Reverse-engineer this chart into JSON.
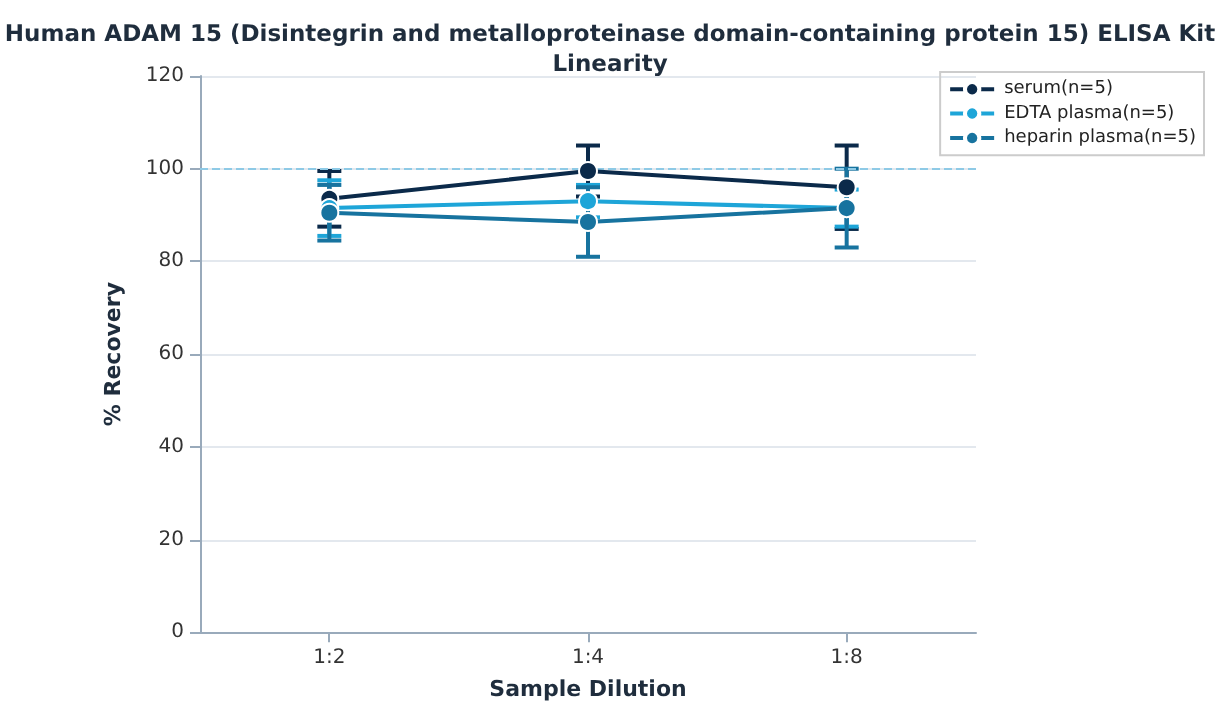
{
  "chart_data": {
    "type": "line",
    "title": "Human ADAM 15 (Disintegrin and metalloproteinase domain-containing protein 15) ELISA Kit",
    "subtitle": "Linearity",
    "xlabel": "Sample Dilution",
    "ylabel": "% Recovery",
    "categories": [
      "1:2",
      "1:4",
      "1:8"
    ],
    "series": [
      {
        "name": "serum(n=5)",
        "color": "#0b2a4a",
        "values": [
          93.5,
          99.5,
          96
        ],
        "errors": [
          6,
          5.5,
          9
        ]
      },
      {
        "name": "EDTA plasma(n=5)",
        "color": "#1ea5d8",
        "values": [
          91.5,
          93,
          91.5
        ],
        "errors": [
          6,
          3.5,
          4
        ]
      },
      {
        "name": "heparin plasma(n=5)",
        "color": "#17739f",
        "values": [
          90.5,
          88.5,
          91.5
        ],
        "errors": [
          6,
          7.5,
          8.5
        ]
      }
    ],
    "ylim": [
      0,
      120
    ],
    "yticks": [
      0,
      20,
      40,
      60,
      80,
      100,
      120
    ],
    "grid": "y",
    "legend": "top right",
    "marker": "circle",
    "line_style": "solid",
    "ref_lines": [
      {
        "axis": "y",
        "value": 100,
        "color": "#8ecae6",
        "line_style": "dashed"
      }
    ]
  }
}
